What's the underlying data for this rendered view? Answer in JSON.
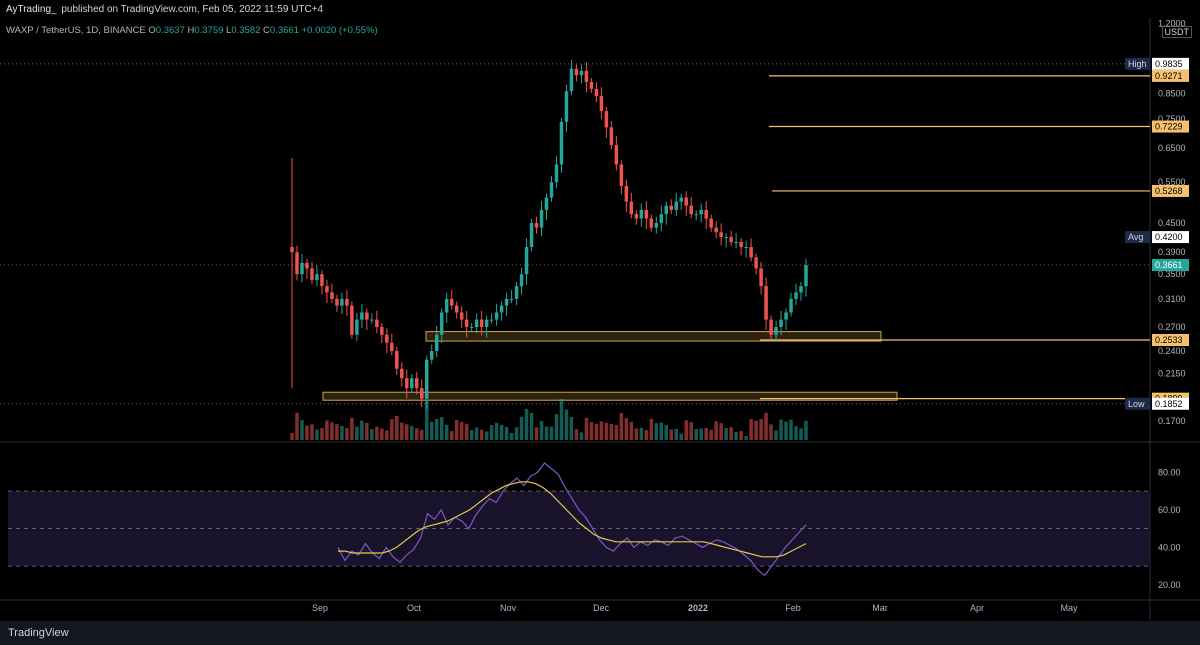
{
  "header": {
    "author": "AyTrading_",
    "published_text": "published on TradingView.com, Feb 05, 2022 11:59 UTC+4"
  },
  "legend": {
    "symbol": "WAXP / TetherUS, 1D, BINANCE",
    "o_label": "O",
    "o_val": "0.3637",
    "h_label": "H",
    "h_val": "0.3759",
    "l_label": "L",
    "l_val": "0.3582",
    "c_label": "C",
    "c_val": "0.3661",
    "change": "+0.0020 (+0.55%)"
  },
  "axis_unit": "USDT",
  "footer": {
    "brand": "TradingView"
  },
  "colors": {
    "up": "#26a69a",
    "down": "#ef5350",
    "level": "#f5c16c",
    "zone_fill": "#3a2f14",
    "zone_stroke": "#d9a441",
    "rsi": "#7e57c2",
    "rsi_ma": "#e6c84c",
    "rsi_band": "#1b1530"
  },
  "chart_data": [
    {
      "type": "candlestick",
      "title": "WAXP / TetherUS, 1D, BINANCE",
      "y_scale": "log",
      "y_ticks": [
        "1.2000",
        "0.8500",
        "0.7500",
        "0.6500",
        "0.5500",
        "0.4500",
        "0.3900",
        "0.3500",
        "0.3100",
        "0.2700",
        "0.2400",
        "0.2150",
        "0.1700"
      ],
      "x_ticks": [
        "Sep",
        "Oct",
        "Nov",
        "Dec",
        "2022",
        "Feb",
        "Mar",
        "Apr",
        "May"
      ],
      "price_labels": [
        {
          "text": "High",
          "value": "0.9835"
        },
        {
          "text": "",
          "value": "0.9271"
        },
        {
          "text": "",
          "value": "0.7229"
        },
        {
          "text": "",
          "value": "0.5268"
        },
        {
          "text": "Avg",
          "value": "0.4200"
        },
        {
          "text": "",
          "value": "0.3661"
        },
        {
          "text": "",
          "value": "0.2533"
        },
        {
          "text": "",
          "value": "0.1899"
        },
        {
          "text": "Low",
          "value": "0.1852"
        }
      ],
      "horizontal_levels": [
        0.9271,
        0.7229,
        0.5268,
        0.2533,
        0.1899
      ],
      "support_zones": [
        {
          "low": 0.252,
          "high": 0.264
        },
        {
          "low": 0.189,
          "high": 0.196
        }
      ],
      "closes": [
        0.3661,
        0.39,
        0.35,
        0.37,
        0.36,
        0.34,
        0.35,
        0.33,
        0.32,
        0.31,
        0.3,
        0.31,
        0.3,
        0.26,
        0.28,
        0.29,
        0.28,
        0.28,
        0.27,
        0.26,
        0.25,
        0.24,
        0.22,
        0.21,
        0.2,
        0.21,
        0.2,
        0.19,
        0.23,
        0.24,
        0.26,
        0.29,
        0.31,
        0.3,
        0.29,
        0.28,
        0.27,
        0.27,
        0.28,
        0.27,
        0.28,
        0.28,
        0.29,
        0.3,
        0.31,
        0.31,
        0.33,
        0.35,
        0.4,
        0.45,
        0.44,
        0.48,
        0.51,
        0.55,
        0.6,
        0.74,
        0.86,
        0.96,
        0.93,
        0.95,
        0.9,
        0.87,
        0.84,
        0.78,
        0.72,
        0.66,
        0.6,
        0.54,
        0.5,
        0.47,
        0.46,
        0.48,
        0.46,
        0.44,
        0.45,
        0.47,
        0.49,
        0.48,
        0.5,
        0.51,
        0.49,
        0.47,
        0.47,
        0.48,
        0.46,
        0.44,
        0.43,
        0.42,
        0.42,
        0.41,
        0.41,
        0.4,
        0.4,
        0.38,
        0.36,
        0.33,
        0.28,
        0.26,
        0.27,
        0.28,
        0.29,
        0.31,
        0.32,
        0.33,
        0.3661
      ]
    },
    {
      "type": "line",
      "title": "RSI",
      "y_ticks": [
        "80.00",
        "60.00",
        "40.00",
        "20.00"
      ],
      "bands": [
        70,
        50,
        30
      ],
      "series": [
        {
          "role": "rsi",
          "values": [
            40,
            33,
            38,
            36,
            42,
            37,
            34,
            40,
            35,
            32,
            36,
            39,
            45,
            58,
            55,
            60,
            52,
            56,
            54,
            50,
            57,
            62,
            66,
            64,
            70,
            74,
            77,
            73,
            78,
            80,
            85,
            82,
            79,
            72,
            66,
            60,
            56,
            50,
            44,
            40,
            38,
            42,
            45,
            40,
            43,
            41,
            44,
            43,
            41,
            45,
            46,
            44,
            42,
            40,
            42,
            44,
            43,
            41,
            39,
            36,
            33,
            28,
            25,
            30,
            35,
            40,
            44,
            48,
            52
          ]
        },
        {
          "role": "ma",
          "values": [
            38,
            38,
            37,
            37,
            37,
            37,
            37,
            38,
            40,
            43,
            46,
            49,
            51,
            52,
            53,
            54,
            56,
            58,
            60,
            63,
            66,
            69,
            71,
            73,
            74,
            75,
            75,
            74,
            72,
            69,
            65,
            61,
            57,
            53,
            50,
            47,
            45,
            44,
            43,
            43,
            43,
            43,
            43,
            43,
            43,
            43,
            43,
            43,
            43,
            43,
            43,
            42,
            41,
            40,
            39,
            38,
            37,
            36,
            35,
            35,
            35,
            36,
            38,
            40,
            42
          ]
        }
      ]
    }
  ]
}
